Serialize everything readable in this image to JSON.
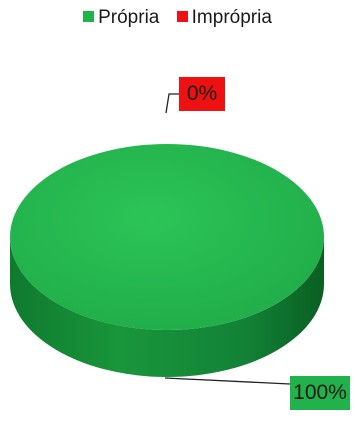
{
  "chart_data": {
    "type": "pie",
    "style": "3d",
    "categories": [
      "Própria",
      "Imprópria"
    ],
    "values": [
      100,
      0
    ],
    "data_labels": [
      "100%",
      "0%"
    ],
    "colors": [
      "#22b24c",
      "#ee1111"
    ],
    "legend_position": "top",
    "title": "",
    "xlabel": "",
    "ylabel": ""
  }
}
